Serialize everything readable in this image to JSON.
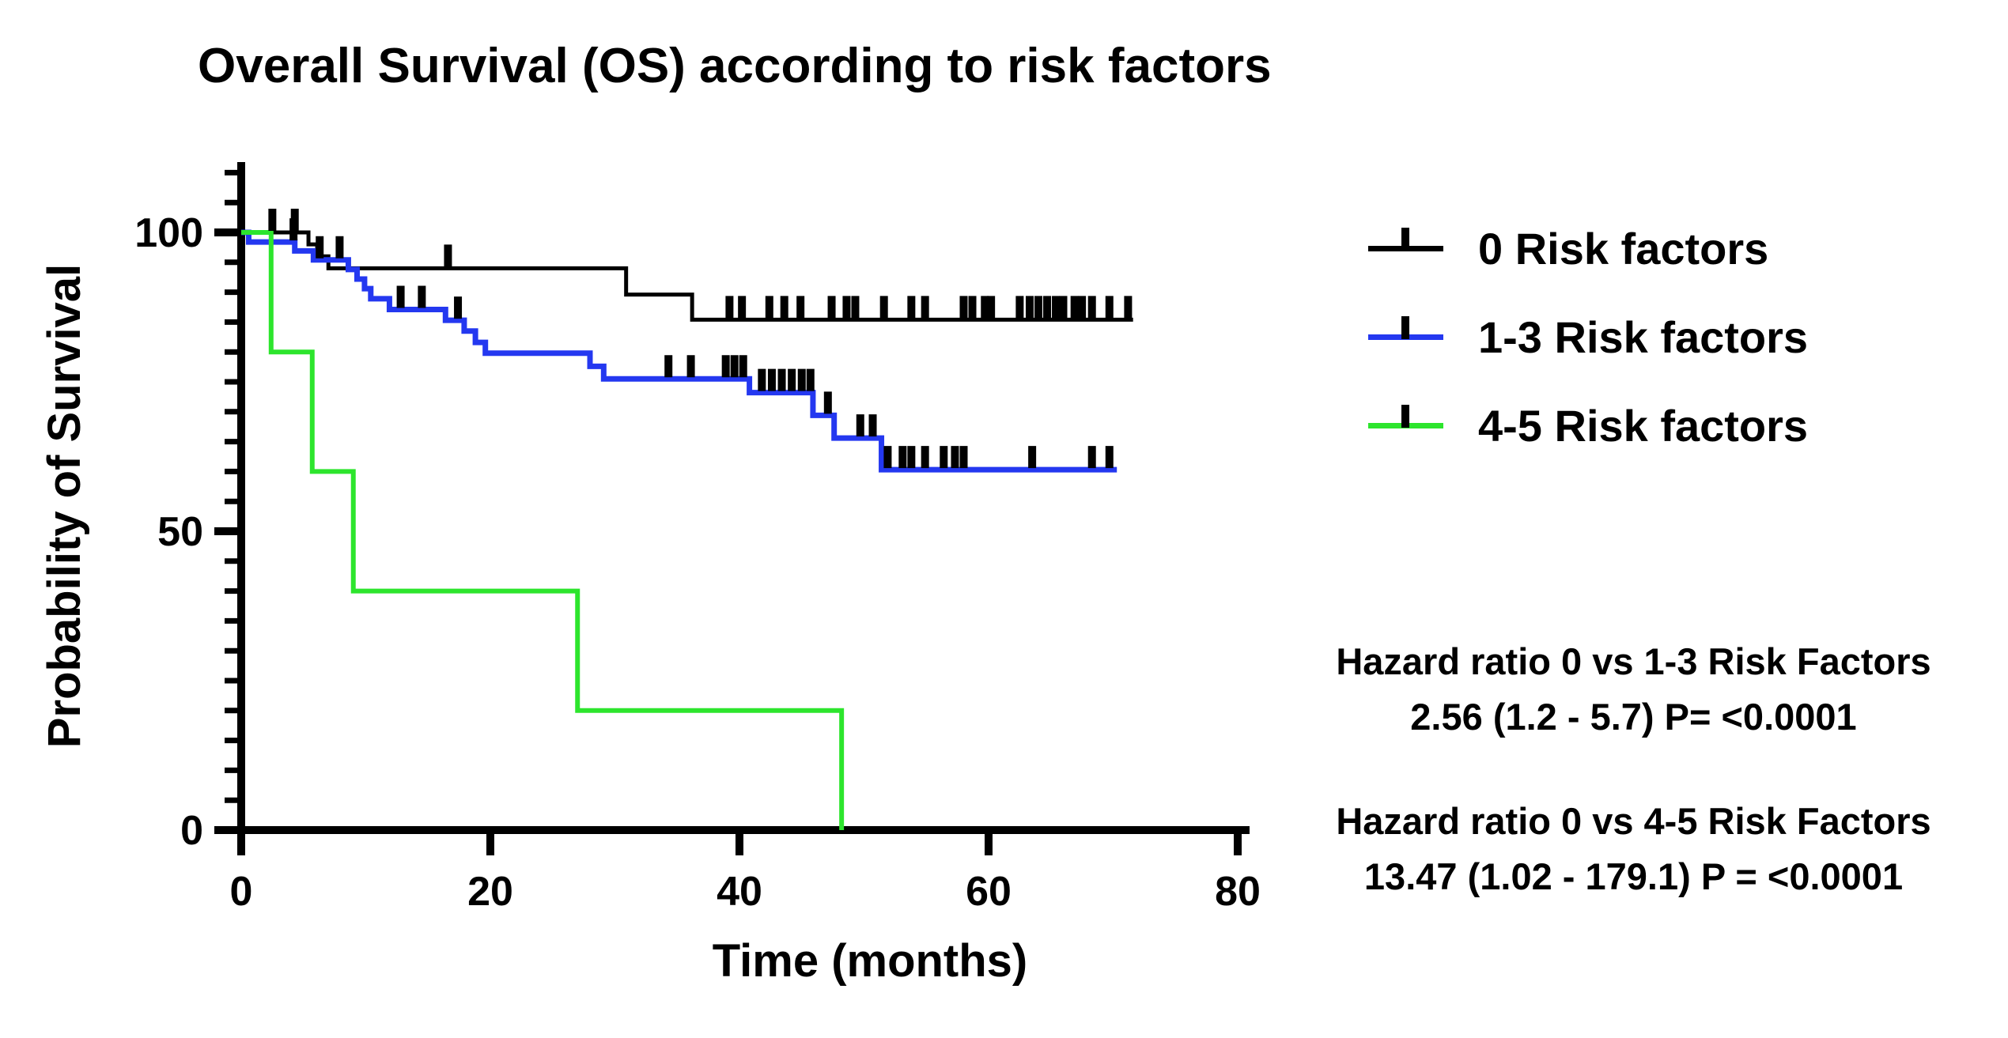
{
  "chart_data": {
    "type": "line",
    "subtype": "kaplan-meier-step-curves",
    "title": "Overall Survival (OS) according to risk factors",
    "xlabel": "Time (months)",
    "ylabel": "Probability of Survival",
    "xlim": [
      0,
      80
    ],
    "ylim": [
      0,
      110
    ],
    "xticks": [
      0,
      20,
      40,
      60,
      80
    ],
    "yticks": [
      100,
      50,
      0
    ],
    "y_minor_tick_step": 5,
    "y_minor_tick_max": 110,
    "grid": false,
    "legend_position": "top-right",
    "censor_mark_color": "#000000",
    "series": [
      {
        "name": "0 Risk factors",
        "color": "#000000",
        "start_survival": 100,
        "drops": [
          [
            5.4,
            98.0
          ],
          [
            6.1,
            96.0
          ],
          [
            7.0,
            94.0
          ],
          [
            30.9,
            89.6
          ],
          [
            36.2,
            85.4
          ]
        ],
        "end_time": 71.6,
        "censor_times": [
          2.5,
          4.3,
          16.6,
          39.2,
          40.2,
          42.4,
          43.6,
          44.9,
          47.4,
          48.6,
          49.3,
          51.6,
          53.8,
          54.9,
          58.0,
          58.7,
          59.7,
          60.2,
          62.5,
          63.3,
          64.0,
          64.7,
          65.4,
          66.0,
          66.9,
          67.5,
          68.3,
          69.7,
          71.2
        ]
      },
      {
        "name": "1-3 Risk factors",
        "color": "#2438f0",
        "start_survival": 100,
        "drops": [
          [
            0.6,
            98.4
          ],
          [
            4.3,
            96.9
          ],
          [
            5.8,
            95.4
          ],
          [
            8.6,
            93.8
          ],
          [
            9.3,
            92.2
          ],
          [
            9.9,
            90.6
          ],
          [
            10.4,
            88.9
          ],
          [
            11.9,
            87.1
          ],
          [
            16.4,
            85.3
          ],
          [
            17.9,
            83.5
          ],
          [
            18.8,
            81.6
          ],
          [
            19.6,
            79.8
          ],
          [
            28.0,
            77.6
          ],
          [
            29.1,
            75.5
          ],
          [
            40.8,
            73.2
          ],
          [
            45.9,
            69.4
          ],
          [
            47.6,
            65.6
          ],
          [
            51.4,
            60.3
          ]
        ],
        "end_time": 70.3,
        "censor_times": [
          4.2,
          6.3,
          7.9,
          12.8,
          14.5,
          17.4,
          34.3,
          36.1,
          38.9,
          39.6,
          40.3,
          41.8,
          42.6,
          43.4,
          44.2,
          45.0,
          45.7,
          47.1,
          49.7,
          50.7,
          51.9,
          53.1,
          53.8,
          54.9,
          56.4,
          57.3,
          58.0,
          63.5,
          68.3,
          69.7
        ]
      },
      {
        "name": "4-5 Risk factors",
        "color": "#2de52d",
        "start_survival": 100,
        "drops": [
          [
            2.4,
            80
          ],
          [
            5.7,
            60
          ],
          [
            9.0,
            40
          ],
          [
            27.0,
            20
          ],
          [
            48.2,
            0
          ]
        ],
        "end_time": 48.2,
        "censor_times": []
      }
    ]
  },
  "annotations": {
    "hr1_line1": "Hazard ratio 0 vs 1-3 Risk Factors",
    "hr1_line2": "2.56 (1.2 - 5.7) P= <0.0001",
    "hr2_line1": "Hazard ratio 0 vs 4-5 Risk Factors",
    "hr2_line2": "13.47 (1.02 - 179.1) P = <0.0001"
  }
}
